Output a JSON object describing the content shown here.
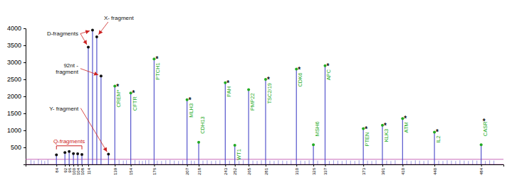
{
  "chart_data": {
    "type": "spike",
    "color": "#5555cc",
    "xlim": [
      55,
      505
    ],
    "ylim": [
      0,
      4000
    ],
    "xticks": [
      84,
      92,
      96,
      100,
      104,
      108,
      114,
      139,
      154,
      176,
      207,
      218,
      243,
      252,
      265,
      281,
      310,
      326,
      337,
      373,
      391,
      410,
      440,
      484
    ],
    "yticks": [
      500,
      1000,
      1500,
      2000,
      2500,
      3000,
      3500,
      4000
    ],
    "reference_lines": [
      0,
      150
    ],
    "baseline_color": "#bb44aa",
    "star_symbol": "*",
    "star_color": "#111111",
    "series": [
      {
        "color": "#5555cc",
        "marker": "none",
        "x": [
          60,
          63,
          67,
          70,
          73,
          76,
          143,
          147,
          150,
          158,
          162,
          165,
          168,
          171,
          179,
          183,
          187,
          191,
          195,
          199,
          203,
          211,
          214,
          222,
          226,
          230,
          234,
          238,
          247,
          256,
          260,
          269,
          273,
          277,
          285,
          289,
          293,
          297,
          301,
          305,
          314,
          318,
          322,
          330,
          341,
          345,
          349,
          353,
          357,
          361,
          365,
          369,
          377,
          381,
          385,
          395,
          399,
          403,
          414,
          418,
          422,
          426,
          430,
          434,
          444,
          448,
          452,
          456,
          460,
          464,
          468,
          472,
          476,
          480,
          488,
          492,
          496
        ],
        "values": [
          130,
          110,
          150,
          120,
          100,
          140,
          130,
          110,
          120,
          130,
          110,
          100,
          120,
          130,
          110,
          100,
          120,
          130,
          110,
          100,
          120,
          110,
          100,
          110,
          120,
          100,
          110,
          120,
          110,
          100,
          120,
          110,
          100,
          120,
          110,
          100,
          120,
          110,
          100,
          120,
          110,
          100,
          120,
          110,
          100,
          120,
          110,
          100,
          120,
          110,
          100,
          120,
          110,
          100,
          120,
          110,
          100,
          120,
          110,
          100,
          120,
          110,
          100,
          120,
          110,
          100,
          120,
          110,
          100,
          120,
          110,
          100,
          120,
          110,
          100,
          120,
          110
        ]
      },
      {
        "color": "#5555cc",
        "marker": "dot",
        "marker_color": "#111111",
        "x": [
          84,
          92,
          96,
          100,
          104,
          108
        ],
        "values": [
          280,
          350,
          380,
          320,
          310,
          290
        ]
      },
      {
        "color": "#5555cc",
        "marker": "dot",
        "marker_color": "#111111",
        "x": [
          114,
          118,
          122,
          126
        ],
        "values": [
          3450,
          3950,
          3750,
          2600
        ]
      },
      {
        "color": "#5555cc",
        "marker": "dot",
        "marker_color": "#111111",
        "x": [
          133
        ],
        "values": [
          300
        ]
      },
      {
        "color": "#5555cc",
        "marker": "dot",
        "marker_color": "#22aa22",
        "label_color": "#22aa22",
        "x": [
          139,
          154,
          176,
          207,
          218,
          243,
          252,
          265,
          281,
          310,
          326,
          337,
          373,
          391,
          410,
          440,
          484
        ],
        "values": [
          2300,
          2100,
          3100,
          1900,
          650,
          2400,
          560,
          2200,
          2500,
          2800,
          580,
          2900,
          1050,
          1150,
          1350,
          950,
          580
        ],
        "labels": [
          "CREM*",
          "CFTR",
          "PTCH1",
          "MLH3",
          "CDH13",
          "PAH",
          "WT1",
          "PMP22",
          "TSC2/19",
          "CDK6",
          "MSH6",
          "APC",
          "PTEN",
          "KLK3",
          "ATM",
          "IL2",
          "CASR"
        ],
        "stars": [
          true,
          true,
          true,
          true,
          false,
          true,
          false,
          false,
          true,
          true,
          false,
          true,
          true,
          true,
          true,
          true,
          true
        ]
      }
    ],
    "annotations": [
      {
        "text": "Q-fragments",
        "color": "#cc2222",
        "bracket": [
          84,
          108
        ]
      },
      {
        "text": "D-fragments",
        "color": "#111111",
        "arrow_color": "#cc2222",
        "points": [
          {
            "x": 118,
            "y": 3950
          },
          {
            "x": 114,
            "y": 3450
          }
        ]
      },
      {
        "text": "X- fragment",
        "color": "#111111",
        "arrow_color": "#cc2222",
        "points": [
          {
            "x": 122,
            "y": 3750
          }
        ]
      },
      {
        "text": "92nt -\nfragment",
        "color": "#111111",
        "arrow_color": "#cc2222",
        "points": [
          {
            "x": 126,
            "y": 2600
          }
        ]
      },
      {
        "text": "Y- fragment",
        "color": "#111111",
        "arrow_color": "#cc2222",
        "points": [
          {
            "x": 133,
            "y": 300
          }
        ]
      }
    ]
  }
}
